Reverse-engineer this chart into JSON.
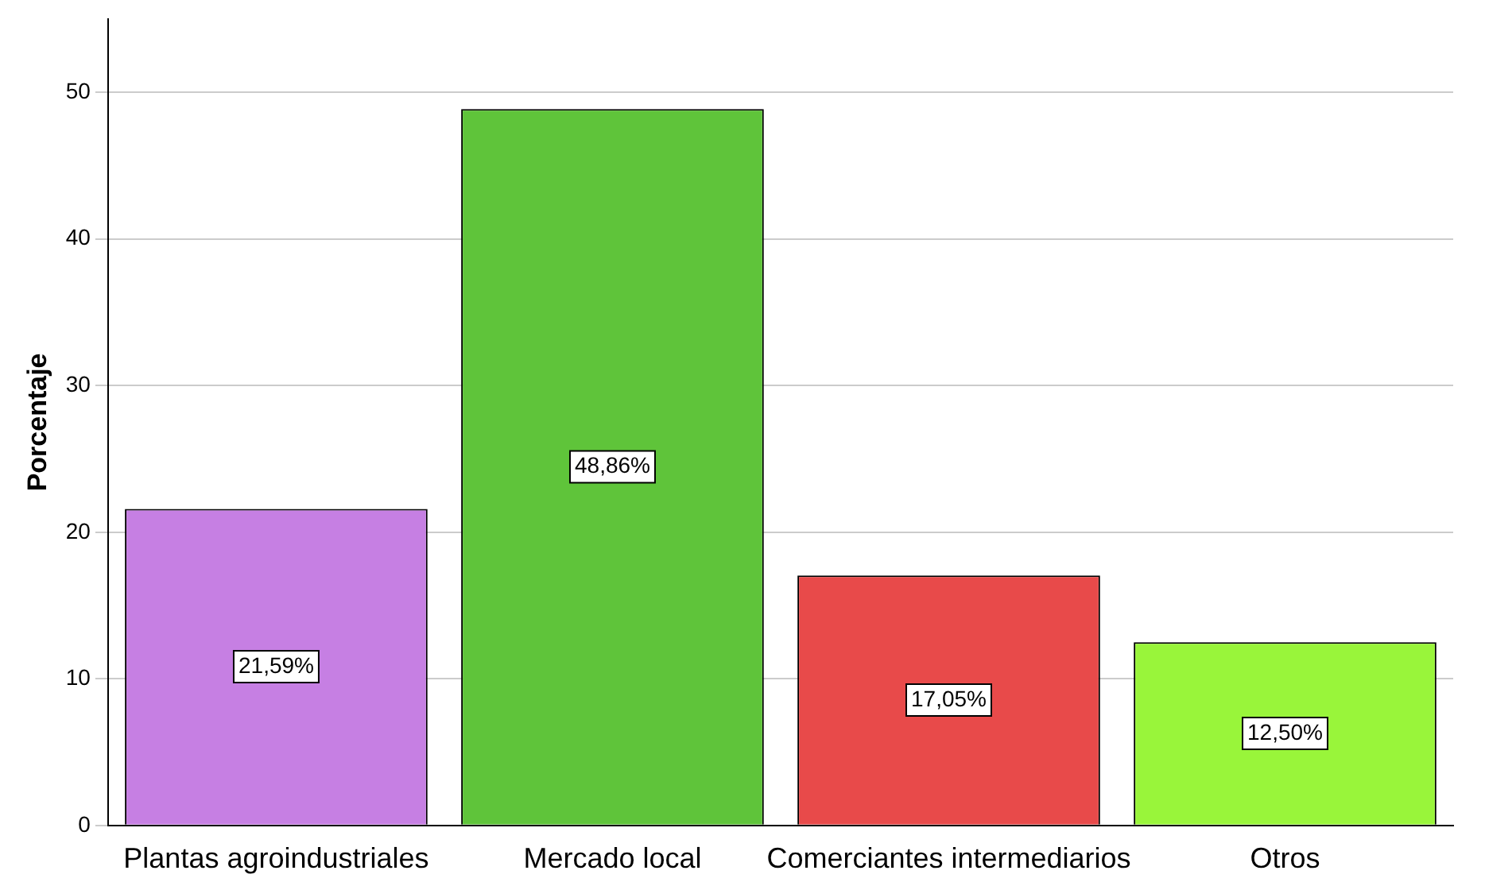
{
  "chart_data": {
    "type": "bar",
    "ylabel": "Porcentaje",
    "categories": [
      "Plantas agroindustriales",
      "Mercado local",
      "Comerciantes intermediarios",
      "Otros"
    ],
    "values": [
      21.59,
      48.86,
      17.05,
      12.5
    ],
    "colors": [
      "#c67fe3",
      "#5fc43a",
      "#e84a4a",
      "#99f53a"
    ],
    "value_labels": [
      "21,59%",
      "48,86%",
      "17,05%",
      "12,50%"
    ],
    "ylim": [
      0,
      55
    ],
    "yticks": [
      0,
      10,
      20,
      30,
      40,
      50
    ],
    "grid": "y",
    "legend": false
  }
}
